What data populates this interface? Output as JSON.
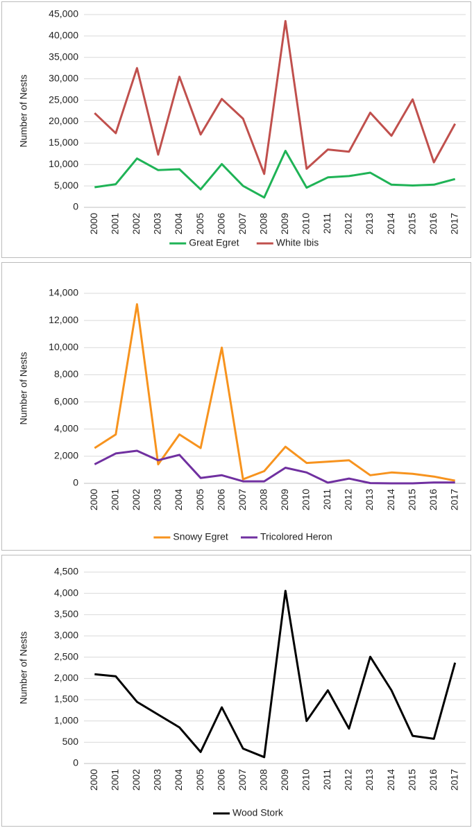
{
  "chart_data": [
    {
      "type": "line",
      "y_label": "Number of Nests",
      "categories": [
        "2000",
        "2001",
        "2002",
        "2003",
        "2004",
        "2005",
        "2006",
        "2007",
        "2008",
        "2009",
        "2010",
        "2011",
        "2012",
        "2013",
        "2014",
        "2015",
        "2016",
        "2017"
      ],
      "series": [
        {
          "name": "Great Egret",
          "color": "#1fb356",
          "values": [
            4700,
            5400,
            11400,
            8700,
            8900,
            4200,
            10100,
            5000,
            2300,
            13200,
            4600,
            7000,
            7300,
            8100,
            5300,
            5100,
            5300,
            6600
          ]
        },
        {
          "name": "White Ibis",
          "color": "#c0504d",
          "values": [
            22000,
            17300,
            32500,
            12300,
            30500,
            17000,
            25300,
            20700,
            7800,
            43500,
            9000,
            13500,
            13000,
            22100,
            16700,
            25200,
            10500,
            19500
          ]
        }
      ],
      "ylim": [
        0,
        45000
      ],
      "yticks": [
        0,
        {
          "value": 5000,
          "label": "5,000"
        },
        {
          "value": 10000,
          "label": "10,000"
        },
        {
          "value": 15000,
          "label": "15,000"
        },
        {
          "value": 20000,
          "label": "20,000"
        },
        {
          "value": 25000,
          "label": "25,000"
        },
        {
          "value": 30000,
          "label": "30,000"
        },
        {
          "value": 35000,
          "label": "35,000"
        },
        {
          "value": 40000,
          "label": "40,000"
        },
        {
          "value": 45000,
          "label": "45,000"
        }
      ],
      "grid": true,
      "legend": "bottom"
    },
    {
      "type": "line",
      "y_label": "Number of Nests",
      "categories": [
        "2000",
        "2001",
        "2002",
        "2003",
        "2004",
        "2005",
        "2006",
        "2007",
        "2008",
        "2009",
        "2010",
        "2011",
        "2012",
        "2013",
        "2014",
        "2015",
        "2016",
        "2017"
      ],
      "series": [
        {
          "name": "Snowy Egret",
          "color": "#f7931e",
          "values": [
            2600,
            3600,
            13200,
            1400,
            3600,
            2600,
            10000,
            300,
            900,
            2700,
            1500,
            1600,
            1700,
            600,
            800,
            700,
            500,
            200
          ]
        },
        {
          "name": "Tricolored Heron",
          "color": "#7030a0",
          "values": [
            1400,
            2200,
            2400,
            1700,
            2100,
            400,
            600,
            150,
            150,
            1150,
            800,
            50,
            350,
            20,
            0,
            0,
            60,
            60
          ]
        }
      ],
      "ylim": [
        0,
        14000
      ],
      "yticks": [
        0,
        {
          "value": 2000,
          "label": "2,000"
        },
        {
          "value": 4000,
          "label": "4,000"
        },
        {
          "value": 6000,
          "label": "6,000"
        },
        {
          "value": 8000,
          "label": "8,000"
        },
        {
          "value": 10000,
          "label": "10,000"
        },
        {
          "value": 12000,
          "label": "12,000"
        },
        {
          "value": 14000,
          "label": "14,000"
        }
      ],
      "grid": true,
      "legend": "bottom"
    },
    {
      "type": "line",
      "y_label": "Number of Nests",
      "categories": [
        "2000",
        "2001",
        "2002",
        "2003",
        "2004",
        "2005",
        "2006",
        "2007",
        "2008",
        "2009",
        "2010",
        "2011",
        "2012",
        "2013",
        "2014",
        "2015",
        "2016",
        "2017"
      ],
      "series": [
        {
          "name": "Wood Stork",
          "color": "#000000",
          "values": [
            2100,
            2050,
            1450,
            1150,
            850,
            270,
            1320,
            350,
            150,
            4060,
            1000,
            1720,
            820,
            2510,
            1720,
            650,
            580,
            2370
          ]
        }
      ],
      "ylim": [
        0,
        4500
      ],
      "yticks": [
        0,
        500,
        {
          "value": 1000,
          "label": "1,000"
        },
        {
          "value": 1500,
          "label": "1,500"
        },
        {
          "value": 2000,
          "label": "2,000"
        },
        {
          "value": 2500,
          "label": "2,500"
        },
        {
          "value": 3000,
          "label": "3,000"
        },
        {
          "value": 3500,
          "label": "3,500"
        },
        {
          "value": 4000,
          "label": "4,000"
        },
        {
          "value": 4500,
          "label": "4,500"
        }
      ],
      "grid": true,
      "legend": "bottom"
    }
  ]
}
